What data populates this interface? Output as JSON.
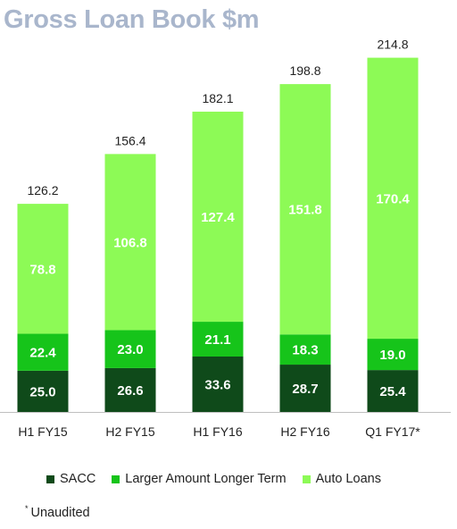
{
  "chart_data": {
    "type": "bar",
    "stacked": true,
    "title": "Gross Loan Book $m",
    "categories": [
      "H1 FY15",
      "H2 FY15",
      "H1 FY16",
      "H2 FY16",
      "Q1 FY17*"
    ],
    "totals": [
      "126.2",
      "156.4",
      "182.1",
      "198.8",
      "214.8"
    ],
    "series": [
      {
        "name": "SACC",
        "color": "#0f4a1a",
        "values": [
          25.0,
          26.6,
          33.6,
          28.7,
          25.4
        ]
      },
      {
        "name": "Larger Amount Longer Term",
        "color": "#16c41a",
        "values": [
          22.4,
          23.0,
          21.1,
          18.3,
          19.0
        ]
      },
      {
        "name": "Auto Loans",
        "color": "#8dfa56",
        "values": [
          78.8,
          106.8,
          127.4,
          151.8,
          170.4
        ]
      }
    ],
    "ylim": [
      0,
      220
    ],
    "grid": false,
    "legend_position": "bottom"
  },
  "footnote": {
    "marker": "*",
    "text": "Unaudited"
  }
}
